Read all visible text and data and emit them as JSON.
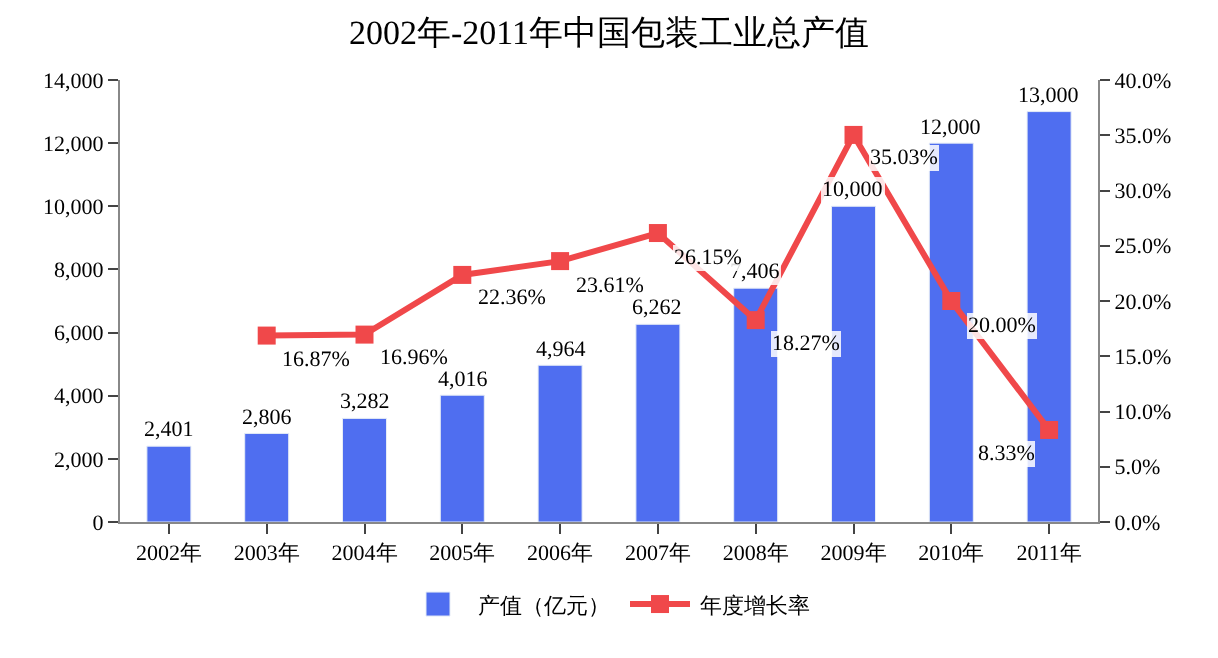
{
  "chart_data": {
    "type": "bar",
    "title": "2002年-2011年中国包装工业总产值",
    "categories": [
      "2002年",
      "2003年",
      "2004年",
      "2005年",
      "2006年",
      "2007年",
      "2008年",
      "2009年",
      "2010年",
      "2011年"
    ],
    "series": [
      {
        "name": "产值（亿元）",
        "color": "#4f6ef0",
        "values": [
          2401,
          2806,
          3282,
          4016,
          4964,
          6262,
          7406,
          10000,
          12000,
          13000
        ],
        "value_labels": [
          "2,401",
          "2,806",
          "3,282",
          "4,016",
          "4,964",
          "6,262",
          "7,406",
          "10,000",
          "12,000",
          "13,000"
        ]
      },
      {
        "name": "年度增长率",
        "type": "line",
        "axis": "y2",
        "color": "#f0484a",
        "marker": "square",
        "values": [
          null,
          16.87,
          16.96,
          22.36,
          23.61,
          26.15,
          18.27,
          35.03,
          20.0,
          8.33
        ],
        "value_labels": [
          null,
          "16.87%",
          "16.96%",
          "22.36%",
          "23.61%",
          "26.15%",
          "18.27%",
          "35.03%",
          "20.00%",
          "8.33%"
        ]
      }
    ],
    "ylim": [
      0,
      14000
    ],
    "yticks": [
      0,
      {
        "value": 2000,
        "label": "2,000"
      },
      {
        "value": 4000,
        "label": "4,000"
      },
      {
        "value": 6000,
        "label": "6,000"
      },
      {
        "value": 8000,
        "label": "8,000"
      },
      {
        "value": 10000,
        "label": "10,000"
      },
      {
        "value": 12000,
        "label": "12,000"
      },
      {
        "value": 14000,
        "label": "14,000"
      }
    ],
    "y2lim": [
      0,
      40
    ],
    "y2ticks": [
      {
        "value": 0,
        "label": "0.0%"
      },
      {
        "value": 5,
        "label": "5.0%"
      },
      {
        "value": 10,
        "label": "10.0%"
      },
      {
        "value": 15,
        "label": "15.0%"
      },
      {
        "value": 20,
        "label": "20.0%"
      },
      {
        "value": 25,
        "label": "25.0%"
      },
      {
        "value": 30,
        "label": "30.0%"
      },
      {
        "value": 35,
        "label": "35.0%"
      },
      {
        "value": 40,
        "label": "40.0%"
      }
    ],
    "legend": "bottom"
  }
}
